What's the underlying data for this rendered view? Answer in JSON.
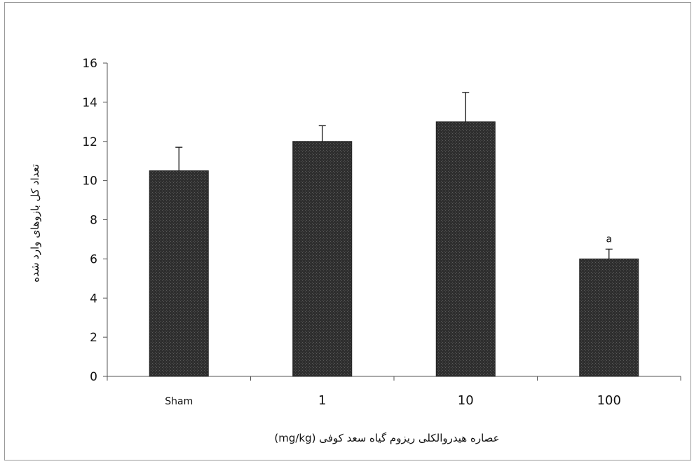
{
  "chart_data": {
    "type": "bar",
    "categories": [
      "Sham",
      "1",
      "10",
      "100"
    ],
    "values": [
      10.5,
      12.0,
      13.0,
      6.0
    ],
    "errors": [
      1.2,
      0.8,
      1.5,
      0.5
    ],
    "annotations": [
      "",
      "",
      "",
      "a"
    ],
    "xlabel": "عصاره هیدروالکلی ریزوم گیاه سعد کوفی (mg/kg)",
    "ylabel": "تعداد کل بازوهای وارد شده",
    "ylim": [
      0,
      16
    ],
    "yticks": [
      0,
      2,
      4,
      6,
      8,
      10,
      12,
      14,
      16
    ],
    "grid": false,
    "bar_color": "#3a3a3a"
  }
}
